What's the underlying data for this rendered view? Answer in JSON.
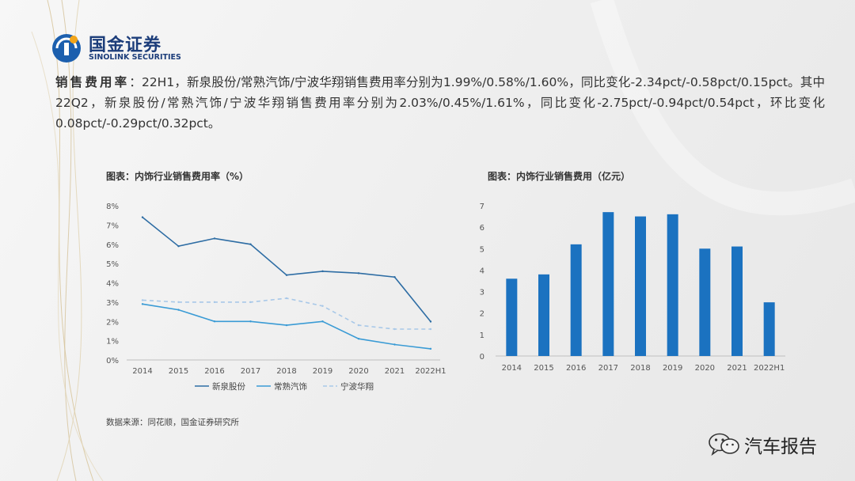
{
  "header": {
    "brand_cn": "国金证券",
    "brand_en": "SINOLINK SECURITIES"
  },
  "summary": {
    "lead": "销售费用率",
    "text": "：22H1，新泉股份/常熟汽饰/宁波华翔销售费用率分别为1.99%/0.58%/1.60%，同比变化-2.34pct/-0.58pct/0.15pct。其中22Q2，新泉股份/常熟汽饰/宁波华翔销售费用率分别为2.03%/0.45%/1.61%，同比变化-2.75pct/-0.94pct/0.54pct，环比变化0.08pct/-0.29pct/0.32pct。"
  },
  "source": "数据来源：同花顺，国金证券研究所",
  "watermark": {
    "text": "汽车报告",
    "icon": "wechat-icon"
  },
  "colors": {
    "brand": "#1c3d7a",
    "series1": "#2e6da4",
    "series2": "#3a9bd5",
    "series3": "#a8c8e8",
    "bar": "#1b72c0"
  },
  "chart_data": [
    {
      "type": "line",
      "title": "图表：内饰行业销售费用率（%）",
      "categories": [
        "2014",
        "2015",
        "2016",
        "2017",
        "2018",
        "2019",
        "2020",
        "2021",
        "2022H1"
      ],
      "series": [
        {
          "name": "新泉股份",
          "values": [
            7.4,
            5.9,
            6.3,
            6.0,
            4.4,
            4.6,
            4.5,
            4.3,
            1.99
          ],
          "style": "solid"
        },
        {
          "name": "常熟汽饰",
          "values": [
            2.9,
            2.6,
            2.0,
            2.0,
            1.8,
            2.0,
            1.1,
            0.8,
            0.58
          ],
          "style": "solid"
        },
        {
          "name": "宁波华翔",
          "values": [
            3.1,
            3.0,
            3.0,
            3.0,
            3.2,
            2.8,
            1.8,
            1.6,
            1.6
          ],
          "style": "dashed"
        }
      ],
      "y_ticks": [
        "0%",
        "1%",
        "2%",
        "3%",
        "4%",
        "5%",
        "6%",
        "7%",
        "8%"
      ],
      "ylim": [
        0,
        8
      ],
      "grid": false,
      "legend": "bottom"
    },
    {
      "type": "bar",
      "title": "图表：内饰行业销售费用（亿元）",
      "categories": [
        "2014",
        "2015",
        "2016",
        "2017",
        "2018",
        "2019",
        "2020",
        "2021",
        "2022H1"
      ],
      "values": [
        3.6,
        3.8,
        5.2,
        6.7,
        6.5,
        6.6,
        5.0,
        5.1,
        2.5
      ],
      "y_ticks": [
        "0",
        "1",
        "2",
        "3",
        "4",
        "5",
        "6",
        "7"
      ],
      "ylim": [
        0,
        7
      ],
      "grid": false
    }
  ]
}
